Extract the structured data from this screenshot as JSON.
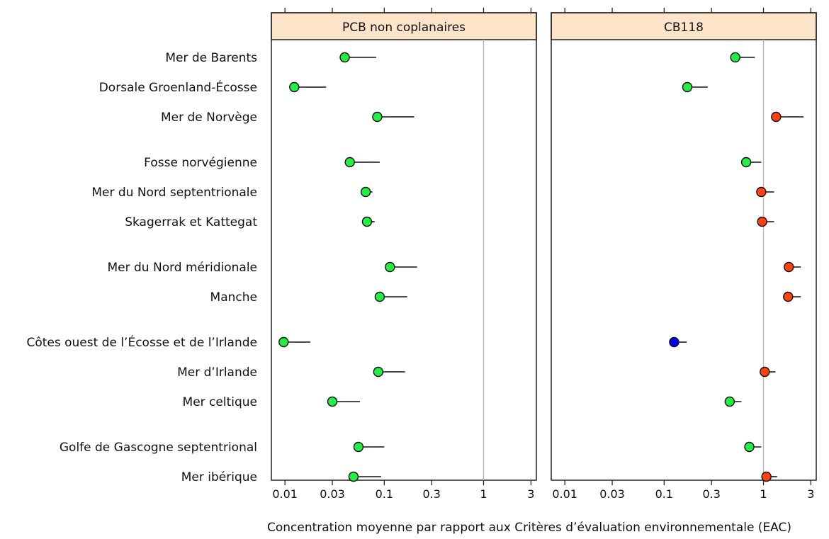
{
  "chart_data": {
    "type": "dot-range",
    "xlabel": "Concentration moyenne  par rapport aux Critères d’évaluation environnementale (EAC)",
    "x_scale": "log",
    "xlim": [
      0.0073,
      3.4
    ],
    "x_ticks": [
      0.01,
      0.03,
      0.1,
      0.3,
      1,
      3
    ],
    "x_tick_labels": [
      "0.01",
      "0.03",
      "0.1",
      "0.3",
      "1",
      "3"
    ],
    "reference_line": 1,
    "categories": [
      "Mer de Barents",
      "Dorsale Groenland-Écosse",
      "Mer de Norvège",
      "Fosse norvégienne",
      "Mer du Nord septentrionale",
      "Skagerrak et Kattegat",
      "Mer du Nord méridionale",
      "Manche",
      "Côtes ouest de l’Écosse et de l’Irlande",
      "Mer d’Irlande",
      "Mer celtique",
      "Golfe de Gascogne septentrional",
      "Mer ibérique"
    ],
    "groups": [
      [
        0,
        1,
        2
      ],
      [
        3,
        4,
        5
      ],
      [
        6,
        7
      ],
      [
        8,
        9,
        10
      ],
      [
        11,
        12
      ]
    ],
    "colors": {
      "green": "#22ee44",
      "red": "#ff4010",
      "blue": "#0000ee",
      "header": "#fde4c8",
      "refline": "#bbbbbb"
    },
    "panels": [
      {
        "title": "PCB non coplanaires",
        "mean": [
          0.04,
          0.0124,
          0.085,
          0.045,
          0.065,
          0.067,
          0.114,
          0.09,
          0.0097,
          0.087,
          0.03,
          0.055,
          0.049
        ],
        "upper": [
          0.083,
          0.026,
          0.2,
          0.09,
          0.076,
          0.08,
          0.214,
          0.17,
          0.018,
          0.162,
          0.057,
          0.1,
          0.093
        ],
        "status": [
          "green",
          "green",
          "green",
          "green",
          "green",
          "green",
          "green",
          "green",
          "green",
          "green",
          "green",
          "green",
          "green"
        ]
      },
      {
        "title": "CB118",
        "mean": [
          0.52,
          0.171,
          1.34,
          0.67,
          0.95,
          0.97,
          1.8,
          1.77,
          0.126,
          1.03,
          0.457,
          0.72,
          1.07
        ],
        "upper": [
          0.82,
          0.275,
          2.54,
          0.95,
          1.28,
          1.28,
          2.38,
          2.38,
          0.169,
          1.32,
          0.6,
          0.95,
          1.37
        ],
        "status": [
          "green",
          "green",
          "red",
          "green",
          "red",
          "red",
          "red",
          "red",
          "blue",
          "red",
          "green",
          "green",
          "red"
        ]
      }
    ]
  }
}
